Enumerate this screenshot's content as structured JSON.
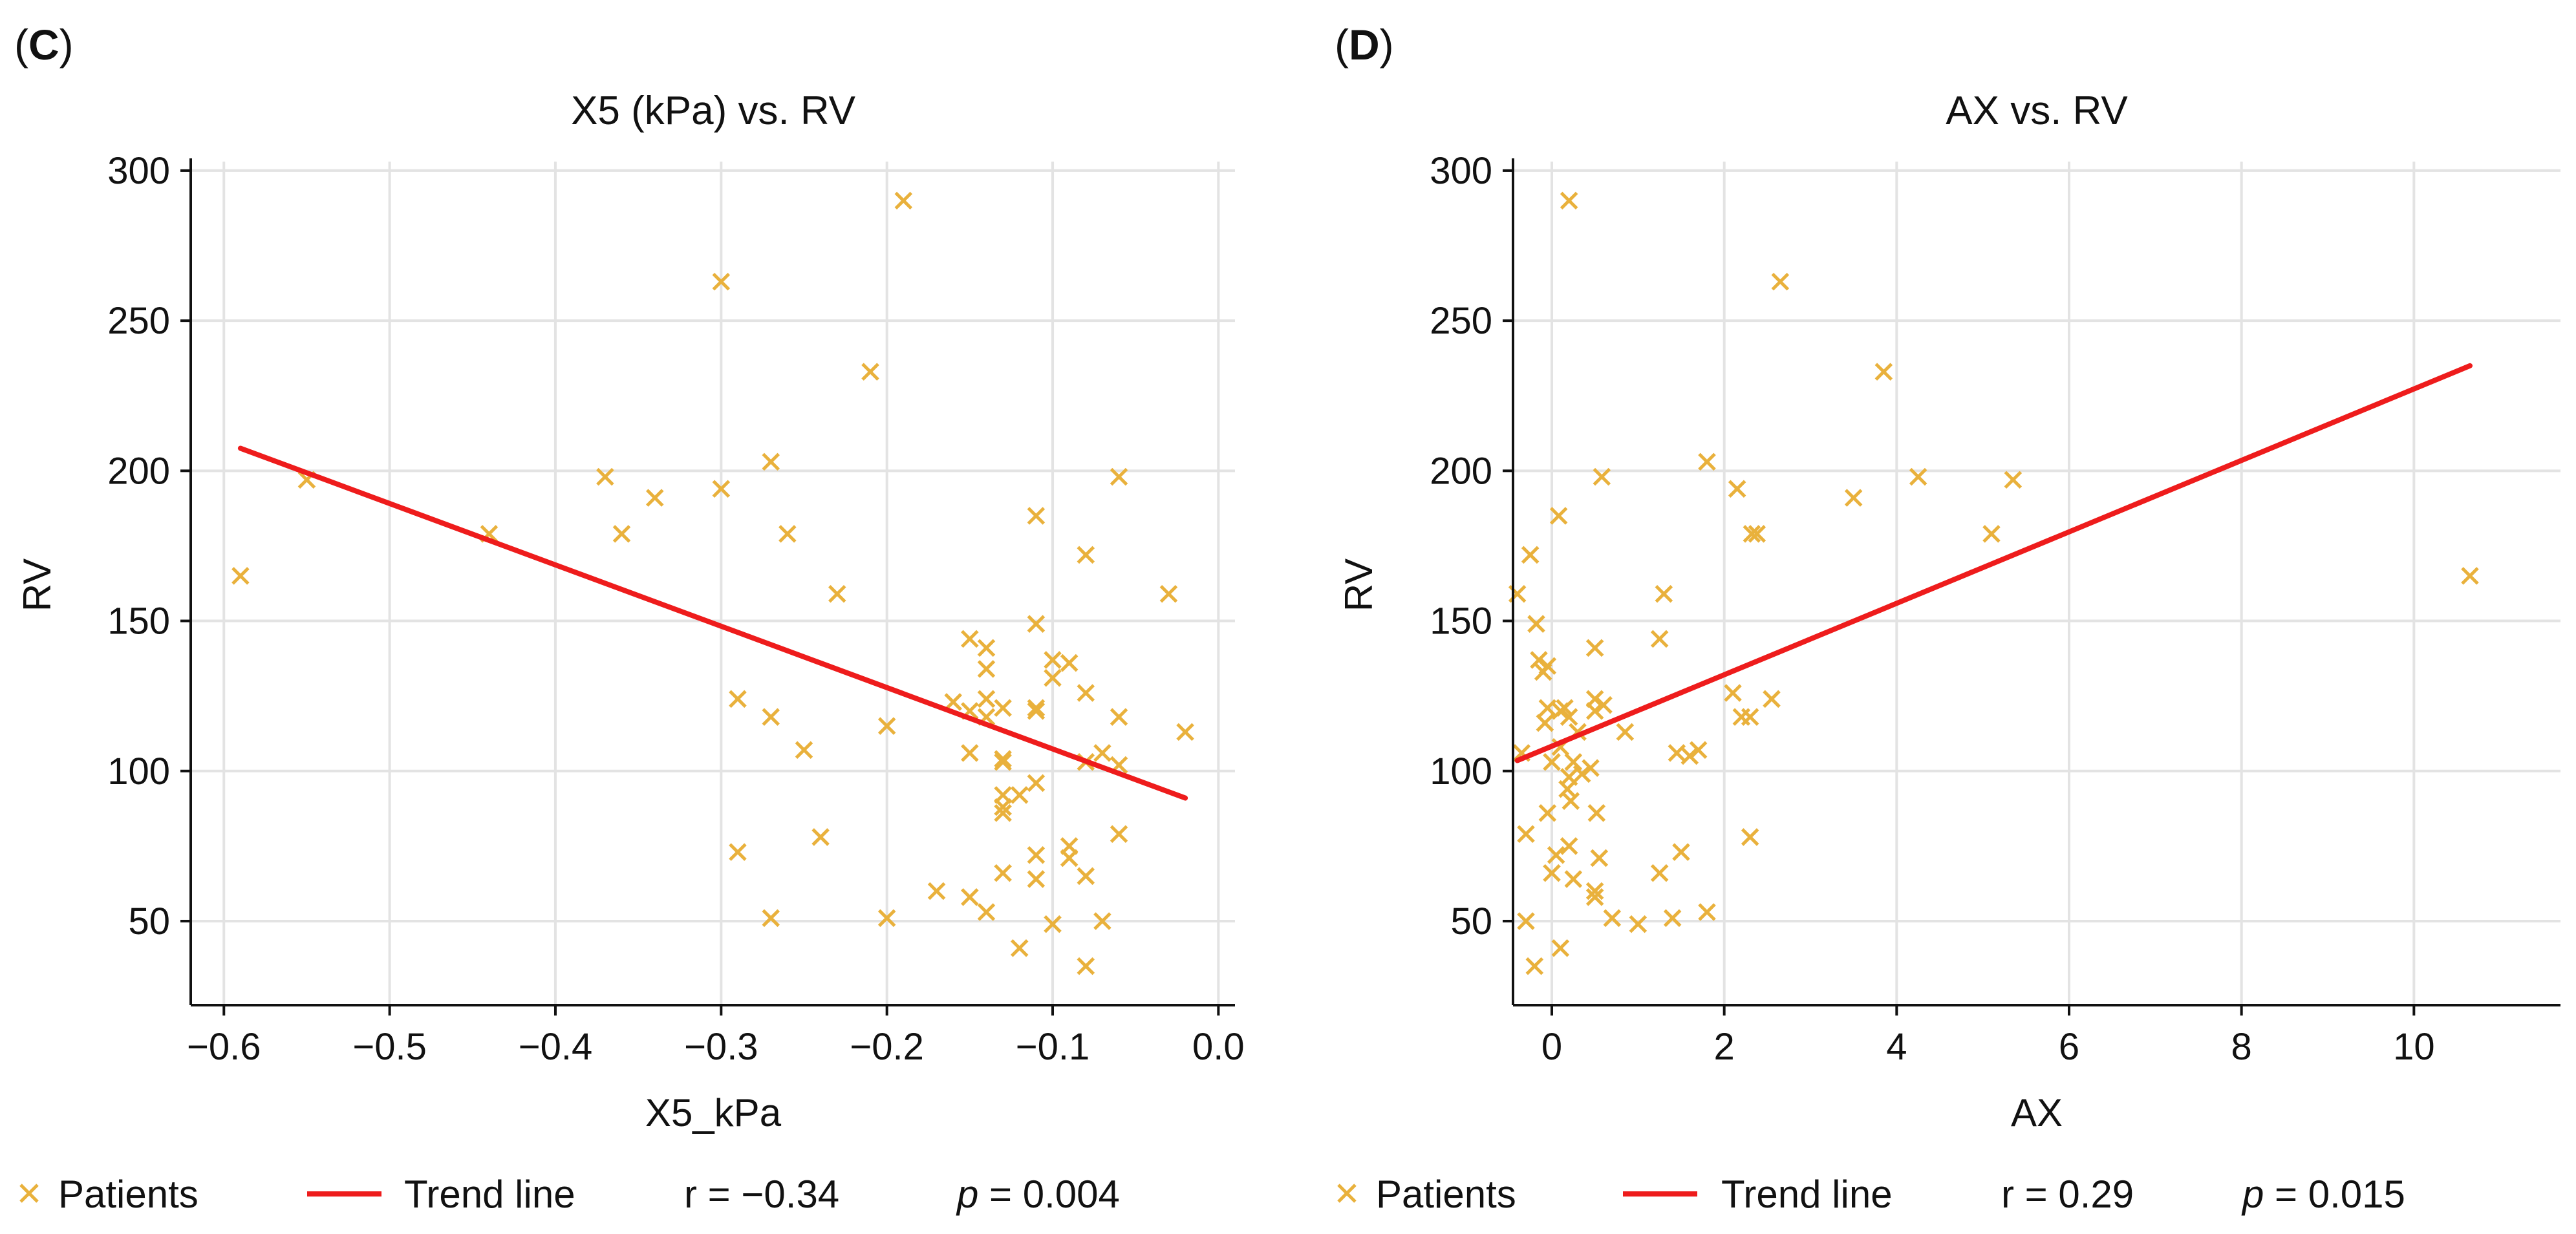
{
  "colors": {
    "points": "#E9B13C",
    "trend": "#EE1C1C",
    "grid": "#E3E3E3",
    "axis": "#111111"
  },
  "chart_data": [
    {
      "panel": "C",
      "type": "scatter",
      "title": "X5 (kPa) vs. RV",
      "xlabel": "X5_kPa",
      "ylabel": "RV",
      "xlim": [
        -0.62,
        0.01
      ],
      "ylim": [
        22,
        303
      ],
      "xticks": [
        -0.6,
        -0.5,
        -0.4,
        -0.3,
        -0.2,
        -0.1,
        0.0
      ],
      "xtick_labels": [
        "−0.6",
        "−0.5",
        "−0.4",
        "−0.3",
        "−0.2",
        "−0.1",
        "0.0"
      ],
      "yticks": [
        50,
        100,
        150,
        200,
        250,
        300
      ],
      "ytick_labels": [
        "50",
        "100",
        "150",
        "200",
        "250",
        "300"
      ],
      "grid": true,
      "series": [
        {
          "name": "Patients",
          "marker": "x",
          "points": [
            [
              -0.59,
              165
            ],
            [
              -0.55,
              197
            ],
            [
              -0.44,
              179
            ],
            [
              -0.37,
              198
            ],
            [
              -0.36,
              179
            ],
            [
              -0.34,
              191
            ],
            [
              -0.3,
              263
            ],
            [
              -0.3,
              194
            ],
            [
              -0.29,
              124
            ],
            [
              -0.29,
              73
            ],
            [
              -0.27,
              203
            ],
            [
              -0.27,
              118
            ],
            [
              -0.27,
              51
            ],
            [
              -0.26,
              179
            ],
            [
              -0.25,
              107
            ],
            [
              -0.24,
              78
            ],
            [
              -0.23,
              159
            ],
            [
              -0.21,
              233
            ],
            [
              -0.2,
              115
            ],
            [
              -0.2,
              51
            ],
            [
              -0.19,
              290
            ],
            [
              -0.17,
              60
            ],
            [
              -0.16,
              123
            ],
            [
              -0.15,
              144
            ],
            [
              -0.15,
              120
            ],
            [
              -0.15,
              106
            ],
            [
              -0.15,
              58
            ],
            [
              -0.14,
              141
            ],
            [
              -0.14,
              134
            ],
            [
              -0.14,
              124
            ],
            [
              -0.14,
              118
            ],
            [
              -0.14,
              53
            ],
            [
              -0.13,
              121
            ],
            [
              -0.13,
              104
            ],
            [
              -0.13,
              103
            ],
            [
              -0.13,
              92
            ],
            [
              -0.13,
              88
            ],
            [
              -0.13,
              86
            ],
            [
              -0.13,
              66
            ],
            [
              -0.12,
              92
            ],
            [
              -0.12,
              41
            ],
            [
              -0.11,
              185
            ],
            [
              -0.11,
              149
            ],
            [
              -0.11,
              121
            ],
            [
              -0.11,
              120
            ],
            [
              -0.11,
              96
            ],
            [
              -0.11,
              72
            ],
            [
              -0.11,
              64
            ],
            [
              -0.1,
              137
            ],
            [
              -0.1,
              131
            ],
            [
              -0.1,
              49
            ],
            [
              -0.09,
              136
            ],
            [
              -0.09,
              75
            ],
            [
              -0.09,
              71
            ],
            [
              -0.08,
              172
            ],
            [
              -0.08,
              126
            ],
            [
              -0.08,
              103
            ],
            [
              -0.08,
              65
            ],
            [
              -0.08,
              35
            ],
            [
              -0.07,
              106
            ],
            [
              -0.07,
              50
            ],
            [
              -0.06,
              198
            ],
            [
              -0.06,
              118
            ],
            [
              -0.06,
              102
            ],
            [
              -0.06,
              79
            ],
            [
              -0.03,
              159
            ],
            [
              -0.02,
              113
            ]
          ]
        },
        {
          "name": "Trend line",
          "type": "line",
          "points": [
            [
              -0.59,
              207.5
            ],
            [
              -0.02,
              91
            ]
          ]
        }
      ],
      "legend": {
        "position": "bottom",
        "items": [
          "Patients",
          "Trend line"
        ],
        "r_text": "r = −0.34",
        "p_symbol": "p",
        "p_value": " = 0.004"
      }
    },
    {
      "panel": "D",
      "type": "scatter",
      "title": "AX vs. RV",
      "xlabel": "AX",
      "ylabel": "RV",
      "xlim": [
        -0.45,
        11.7
      ],
      "ylim": [
        22,
        303
      ],
      "xticks": [
        0,
        2,
        4,
        6,
        8,
        10
      ],
      "xtick_labels": [
        "0",
        "2",
        "4",
        "6",
        "8",
        "10"
      ],
      "yticks": [
        50,
        100,
        150,
        200,
        250,
        300
      ],
      "ytick_labels": [
        "50",
        "100",
        "150",
        "200",
        "250",
        "300"
      ],
      "grid": true,
      "series": [
        {
          "name": "Patients",
          "marker": "x",
          "points": [
            [
              -0.4,
              159
            ],
            [
              -0.35,
              106
            ],
            [
              -0.3,
              50
            ],
            [
              -0.3,
              79
            ],
            [
              -0.25,
              172
            ],
            [
              -0.2,
              35
            ],
            [
              -0.18,
              149
            ],
            [
              -0.15,
              137
            ],
            [
              -0.1,
              133
            ],
            [
              -0.08,
              116
            ],
            [
              -0.05,
              135
            ],
            [
              -0.05,
              121
            ],
            [
              -0.05,
              86
            ],
            [
              0.0,
              103
            ],
            [
              0.0,
              66
            ],
            [
              0.05,
              72
            ],
            [
              0.08,
              185
            ],
            [
              0.1,
              120
            ],
            [
              0.1,
              108
            ],
            [
              0.1,
              41
            ],
            [
              0.15,
              121
            ],
            [
              0.18,
              94
            ],
            [
              0.2,
              290
            ],
            [
              0.2,
              118
            ],
            [
              0.2,
              98
            ],
            [
              0.2,
              75
            ],
            [
              0.22,
              90
            ],
            [
              0.25,
              103
            ],
            [
              0.25,
              64
            ],
            [
              0.3,
              113
            ],
            [
              0.35,
              99
            ],
            [
              0.45,
              101
            ],
            [
              0.5,
              141
            ],
            [
              0.5,
              124
            ],
            [
              0.5,
              120
            ],
            [
              0.5,
              60
            ],
            [
              0.5,
              58
            ],
            [
              0.52,
              86
            ],
            [
              0.55,
              71
            ],
            [
              0.58,
              198
            ],
            [
              0.6,
              122
            ],
            [
              0.7,
              51
            ],
            [
              0.85,
              113
            ],
            [
              1.0,
              49
            ],
            [
              1.25,
              144
            ],
            [
              1.25,
              66
            ],
            [
              1.3,
              159
            ],
            [
              1.4,
              51
            ],
            [
              1.45,
              106
            ],
            [
              1.5,
              73
            ],
            [
              1.6,
              105
            ],
            [
              1.7,
              107
            ],
            [
              1.8,
              203
            ],
            [
              1.8,
              53
            ],
            [
              2.1,
              126
            ],
            [
              2.15,
              194
            ],
            [
              2.2,
              118
            ],
            [
              2.3,
              118
            ],
            [
              2.3,
              78
            ],
            [
              2.32,
              179
            ],
            [
              2.38,
              179
            ],
            [
              2.55,
              124
            ],
            [
              2.65,
              263
            ],
            [
              3.5,
              191
            ],
            [
              3.85,
              233
            ],
            [
              4.25,
              198
            ],
            [
              5.1,
              179
            ],
            [
              5.35,
              197
            ],
            [
              10.65,
              165
            ]
          ]
        },
        {
          "name": "Trend line",
          "type": "line",
          "points": [
            [
              -0.4,
              103.5
            ],
            [
              10.65,
              235
            ]
          ]
        }
      ],
      "legend": {
        "position": "bottom",
        "items": [
          "Patients",
          "Trend line"
        ],
        "r_text": "r = 0.29",
        "p_symbol": "p",
        "p_value": " = 0.015"
      }
    }
  ]
}
